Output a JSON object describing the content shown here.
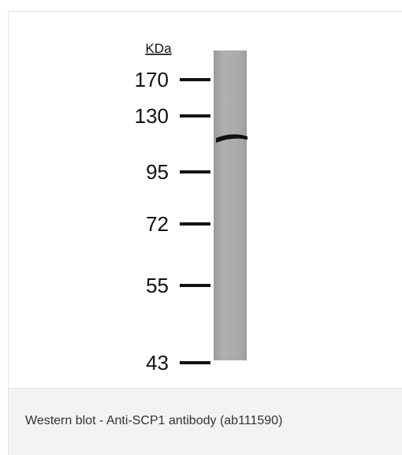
{
  "figure": {
    "unit_label": "KDa",
    "markers": [
      170,
      130,
      95,
      72,
      55,
      43
    ]
  },
  "caption": "Western blot - Anti-SCP1 antibody (ab111590)"
}
